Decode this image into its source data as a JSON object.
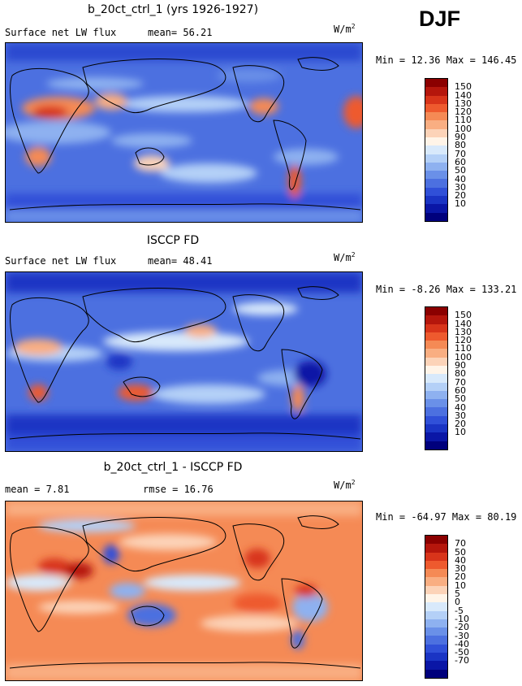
{
  "season": "DJF",
  "panels": [
    {
      "title": "b_20ct_ctrl_1 (yrs 1926-1927)",
      "left_label": "Surface net LW flux",
      "right_label": "mean=  56.21",
      "units": "W/m",
      "units_exp": "2",
      "minmax": "Min =  12.36 Max = 146.45",
      "colorbar": {
        "colors": [
          "#8b0000",
          "#b5160c",
          "#d8341a",
          "#ee5a2e",
          "#f58a55",
          "#f9ae82",
          "#fcd3b8",
          "#fff4e8",
          "#d8e9fb",
          "#b4d0f7",
          "#8eb1f0",
          "#6a90e8",
          "#4c70e0",
          "#3050d8",
          "#1a34c4",
          "#0a16a6",
          "#00007c"
        ],
        "labels": [
          "150",
          "140",
          "130",
          "120",
          "110",
          "100",
          "90",
          "80",
          "70",
          "60",
          "50",
          "40",
          "30",
          "20",
          "10"
        ]
      }
    },
    {
      "title": "ISCCP FD",
      "left_label": "Surface net LW flux",
      "right_label": "mean=  48.41",
      "units": "W/m",
      "units_exp": "2",
      "minmax": "Min =  -8.26 Max = 133.21",
      "colorbar": {
        "colors": [
          "#8b0000",
          "#b5160c",
          "#d8341a",
          "#ee5a2e",
          "#f58a55",
          "#f9ae82",
          "#fcd3b8",
          "#fff4e8",
          "#d8e9fb",
          "#b4d0f7",
          "#8eb1f0",
          "#6a90e8",
          "#4c70e0",
          "#3050d8",
          "#1a34c4",
          "#0a16a6",
          "#00007c"
        ],
        "labels": [
          "150",
          "140",
          "130",
          "120",
          "110",
          "100",
          "90",
          "80",
          "70",
          "60",
          "50",
          "40",
          "30",
          "20",
          "10"
        ]
      }
    },
    {
      "title": "b_20ct_ctrl_1 - ISCCP FD",
      "left_label": "mean =   7.81",
      "right_label": "rmse =  16.76",
      "units": "W/m",
      "units_exp": "2",
      "minmax": "Min = -64.97 Max =  80.19",
      "colorbar": {
        "colors": [
          "#8b0000",
          "#b5160c",
          "#d8341a",
          "#ee5a2e",
          "#f58a55",
          "#f9ae82",
          "#fcd3b8",
          "#fff4e8",
          "#d8e9fb",
          "#b4d0f7",
          "#8eb1f0",
          "#6a90e8",
          "#4c70e0",
          "#3050d8",
          "#1a34c4",
          "#0a16a6",
          "#00007c"
        ],
        "labels": [
          "70",
          "50",
          "40",
          "30",
          "20",
          "10",
          "5",
          "0",
          "-5",
          "-10",
          "-20",
          "-30",
          "-40",
          "-50",
          "-70"
        ]
      }
    }
  ]
}
